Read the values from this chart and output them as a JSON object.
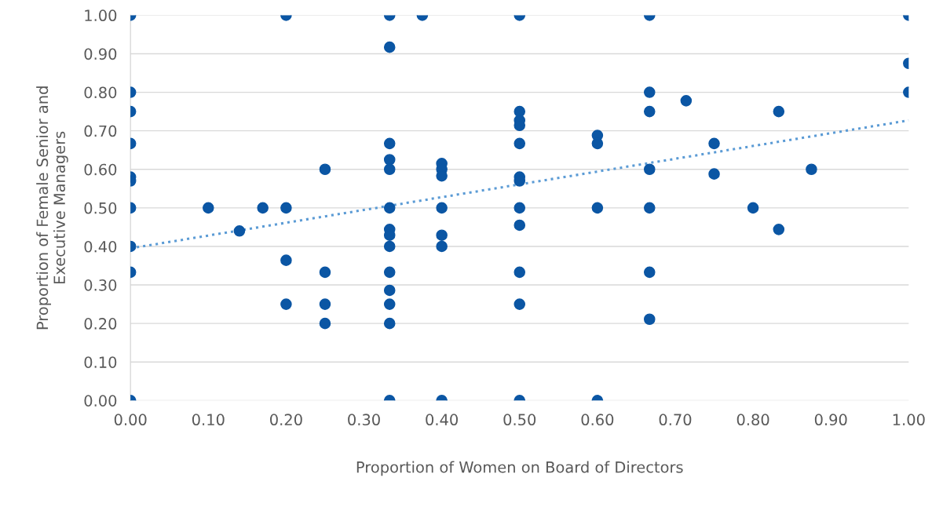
{
  "chart_data": {
    "type": "scatter",
    "xlabel": "Proportion of Women on Board of Directors",
    "ylabel": "Proportion of Female Senior and\nExecutive Managers",
    "xlim": [
      0,
      1
    ],
    "ylim": [
      0,
      1
    ],
    "xticks": [
      {
        "value": 0,
        "label": "0.00"
      },
      {
        "value": 0.1,
        "label": "0.10"
      },
      {
        "value": 0.2,
        "label": "0.20"
      },
      {
        "value": 0.3,
        "label": "0.30"
      },
      {
        "value": 0.4,
        "label": "0.40"
      },
      {
        "value": 0.5,
        "label": "0.50"
      },
      {
        "value": 0.6,
        "label": "0.60"
      },
      {
        "value": 0.7,
        "label": "0.70"
      },
      {
        "value": 0.8,
        "label": "0.80"
      },
      {
        "value": 0.9,
        "label": "0.90"
      },
      {
        "value": 1,
        "label": "1.00"
      }
    ],
    "yticks": [
      {
        "value": 0,
        "label": "0.00"
      },
      {
        "value": 0.1,
        "label": "0.10"
      },
      {
        "value": 0.2,
        "label": "0.20"
      },
      {
        "value": 0.3,
        "label": "0.30"
      },
      {
        "value": 0.4,
        "label": "0.40"
      },
      {
        "value": 0.5,
        "label": "0.50"
      },
      {
        "value": 0.6,
        "label": "0.60"
      },
      {
        "value": 0.7,
        "label": "0.70"
      },
      {
        "value": 0.8,
        "label": "0.80"
      },
      {
        "value": 0.9,
        "label": "0.90"
      },
      {
        "value": 1,
        "label": "1.00"
      }
    ],
    "grid": "y",
    "marker": "circle",
    "series": [
      {
        "color": "#0b56a4",
        "x": [
          0,
          0,
          0,
          0,
          0,
          0,
          0,
          0,
          0,
          0,
          0.1,
          0.14,
          0.17,
          0.2,
          0.2,
          0.2,
          0.2,
          0.25,
          0.25,
          0.25,
          0.25,
          0.333,
          0.333,
          0.333,
          0.333,
          0.333,
          0.333,
          0.333,
          0.333,
          0.333,
          0.333,
          0.333,
          0.333,
          0.333,
          0.333,
          0.375,
          0.4,
          0.4,
          0.4,
          0.4,
          0.4,
          0.4,
          0.4,
          0.5,
          0.5,
          0.5,
          0.5,
          0.5,
          0.5,
          0.5,
          0.5,
          0.5,
          0.5,
          0.5,
          0.5,
          0.6,
          0.6,
          0.6,
          0.6,
          0.667,
          0.667,
          0.667,
          0.667,
          0.667,
          0.667,
          0.667,
          0.714,
          0.75,
          0.75,
          0.8,
          0.833,
          0.833,
          0.875,
          1,
          1,
          1
        ],
        "values": [
          1,
          0.8,
          0.75,
          0.667,
          0.58,
          0.57,
          0.5,
          0.4,
          0.333,
          0,
          0.5,
          0.44,
          0.5,
          1,
          0.5,
          0.364,
          0.25,
          0.6,
          0.333,
          0.25,
          0.2,
          1,
          0.917,
          0.667,
          0.625,
          0.6,
          0.5,
          0.444,
          0.429,
          0.4,
          0.333,
          0.286,
          0.25,
          0.2,
          0,
          1,
          0.615,
          0.6,
          0.583,
          0.5,
          0.429,
          0.4,
          0,
          1,
          0.75,
          0.727,
          0.714,
          0.667,
          0.58,
          0.57,
          0.5,
          0.455,
          0.333,
          0.25,
          0,
          0.688,
          0.667,
          0.5,
          0,
          1,
          0.8,
          0.75,
          0.6,
          0.5,
          0.333,
          0.211,
          0.778,
          0.667,
          0.588,
          0.5,
          0.75,
          0.444,
          0.6,
          1,
          0.875,
          0.8
        ]
      },
      {
        "type": "line",
        "color": "#5b9bd5",
        "line_style": "dotted",
        "marker": "none",
        "x": [
          0,
          1
        ],
        "values": [
          0.395,
          0.727
        ]
      }
    ]
  }
}
